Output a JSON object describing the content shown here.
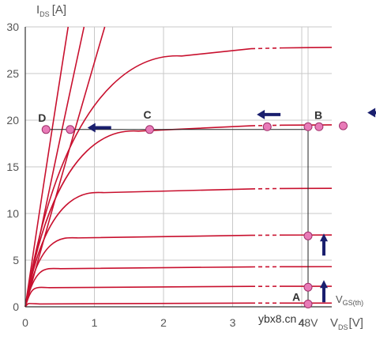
{
  "chart_data": {
    "type": "line",
    "ylabel_main": "I",
    "ylabel_sub": "DS",
    "ylabel_unit": "[A]",
    "xlabel_main": "V",
    "xlabel_sub": "DS",
    "xlabel_unit": "[V]",
    "ylim": [
      0,
      30
    ],
    "yticks": [
      "0",
      "5",
      "10",
      "15",
      "20",
      "25",
      "30"
    ],
    "xticks": [
      "0",
      "1",
      "2",
      "3",
      "4",
      "48V"
    ],
    "grid": true,
    "vgs_label_main": "V",
    "vgs_label_sub": "GS(th)",
    "curves": [
      {
        "sat": 27.8
      },
      {
        "sat": 19.5
      },
      {
        "sat": 12.7
      },
      {
        "sat": 7.7
      },
      {
        "sat": 4.3
      },
      {
        "sat": 2.2
      },
      {
        "sat": 0.4
      }
    ],
    "ohmic_lines": [
      {
        "x_at_top": 0.62
      },
      {
        "x_at_top": 0.85
      },
      {
        "x_at_top": 1.15
      }
    ],
    "load_current": 19.0,
    "points": [
      {
        "label": "A",
        "x": 48,
        "y": 0.3
      },
      {
        "label": "",
        "x": 48,
        "y": 2.1
      },
      {
        "label": "",
        "x": 48,
        "y": 7.6
      },
      {
        "label": "B",
        "x": 48,
        "y": 19.3
      },
      {
        "label": "",
        "x": 4.6,
        "y": 19.4
      },
      {
        "label": "",
        "x": 4.25,
        "y": 19.3
      },
      {
        "label": "",
        "x": 3.5,
        "y": 19.3
      },
      {
        "label": "C",
        "x": 1.8,
        "y": 19.0
      },
      {
        "label": "",
        "x": 0.65,
        "y": 19.0
      },
      {
        "label": "D",
        "x": 0.3,
        "y": 19.0
      }
    ],
    "arrows": [
      {
        "dir": "left",
        "x": 0.9,
        "y": 19.2
      },
      {
        "dir": "left",
        "x": 3.35,
        "y": 20.6
      },
      {
        "dir": "left",
        "x": 4.95,
        "y": 20.8
      },
      {
        "dir": "up",
        "x": 48,
        "y": 6.5
      },
      {
        "dir": "up",
        "x": 48,
        "y": 1.5
      }
    ]
  },
  "watermark": "ybx8.cn",
  "colors": {
    "curve": "#c8102e",
    "point": "#e87bb8",
    "arrow": "#1a1f6e",
    "grid": "#c8c8c8",
    "axis": "#333333"
  }
}
